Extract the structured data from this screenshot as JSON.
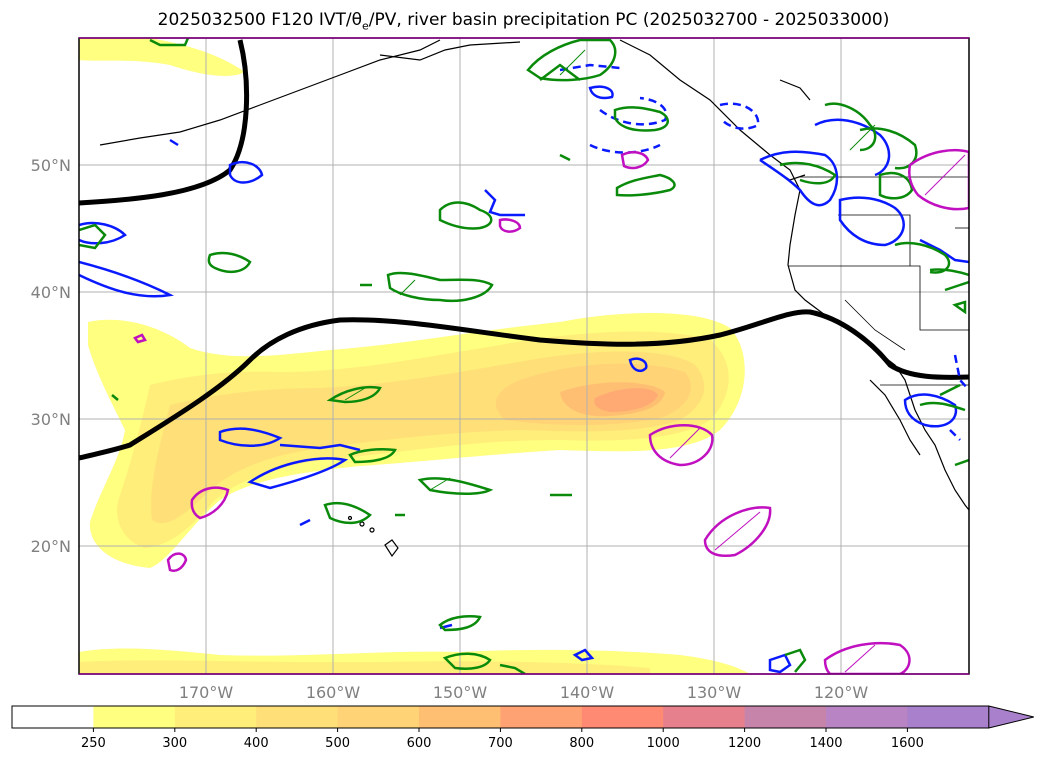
{
  "title": {
    "prefix": "2025032500 F120 IVT/",
    "theta": "θ",
    "theta_sub": "e",
    "suffix": "/PV, river basin precipitation PC (2025032700 - 2025033000)"
  },
  "map": {
    "lon_range": [
      -180,
      -110
    ],
    "lat_range": [
      10,
      60
    ],
    "lat_labels": [
      "20°N",
      "30°N",
      "40°N",
      "50°N"
    ],
    "lon_labels": [
      "170°W",
      "160°W",
      "150°W",
      "140°W",
      "130°W",
      "120°W"
    ],
    "lat_values": [
      20,
      30,
      40,
      50
    ],
    "lon_values": [
      -170,
      -160,
      -150,
      -140,
      -130,
      -120
    ],
    "grid": true
  },
  "colorbar": {
    "ticks": [
      "250",
      "300",
      "400",
      "500",
      "600",
      "700",
      "800",
      "1000",
      "1200",
      "1400",
      "1600"
    ],
    "colors": [
      "#ffffff",
      "#ffff80",
      "#ffee7a",
      "#ffe078",
      "#ffd376",
      "#ffbf73",
      "#ffa273",
      "#ff8a73",
      "#e6808c",
      "#c784aa",
      "#b884c4",
      "#a980cc"
    ],
    "extend": "max"
  },
  "chart_data": {
    "type": "map",
    "fields": [
      {
        "name": "IVT",
        "style": "filled yellow-orange contours"
      },
      {
        "name": "θe",
        "style": "blue and green contours"
      },
      {
        "name": "PV",
        "style": "magenta contours"
      },
      {
        "name": "jet axis",
        "style": "thick black line"
      }
    ],
    "ivt_max_region": {
      "lon": -135,
      "lat": 31,
      "level": "500-600"
    }
  },
  "colors": {
    "grid": "#b0b0b0",
    "blue": "#0a1aff",
    "green": "#0a8a0a",
    "magenta": "#c010c0",
    "frame_top": "#8b008b"
  }
}
